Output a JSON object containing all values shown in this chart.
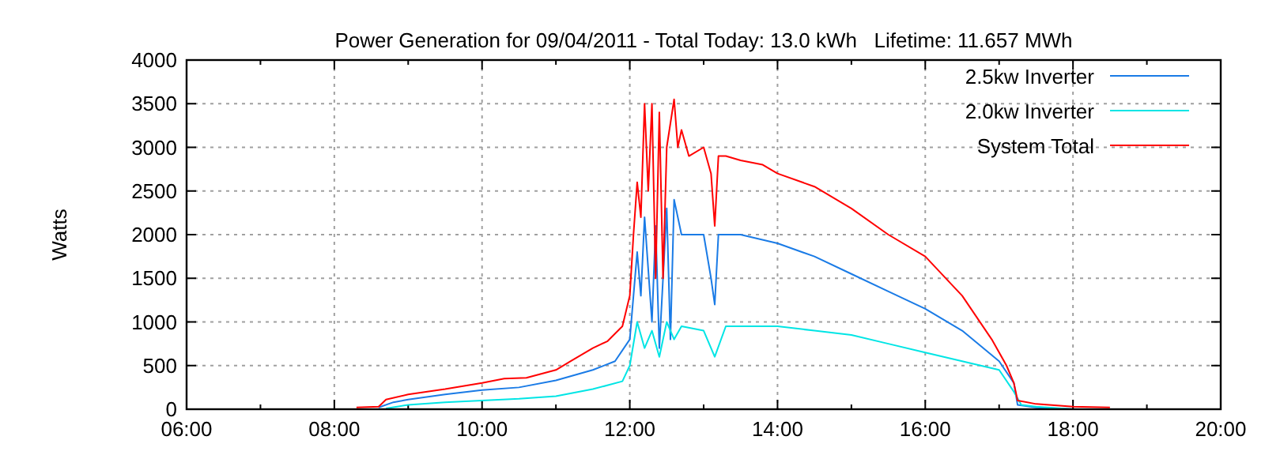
{
  "chart_data": {
    "type": "line",
    "title": "Power Generation for 09/04/2011 - Total Today: 13.0 kWh   Lifetime: 11.657 MWh",
    "ylabel": "Watts",
    "xlim": [
      6,
      20
    ],
    "xticks": [
      {
        "value": 6,
        "label": "06:00"
      },
      {
        "value": 7,
        "label": null
      },
      {
        "value": 8,
        "label": "08:00"
      },
      {
        "value": 9,
        "label": null
      },
      {
        "value": 10,
        "label": "10:00"
      },
      {
        "value": 11,
        "label": null
      },
      {
        "value": 12,
        "label": "12:00"
      },
      {
        "value": 13,
        "label": null
      },
      {
        "value": 14,
        "label": "14:00"
      },
      {
        "value": 15,
        "label": null
      },
      {
        "value": 16,
        "label": "16:00"
      },
      {
        "value": 17,
        "label": null
      },
      {
        "value": 18,
        "label": "18:00"
      },
      {
        "value": 19,
        "label": null
      },
      {
        "value": 20,
        "label": "20:00"
      }
    ],
    "ylim": [
      0,
      4000
    ],
    "yticks": [
      0,
      500,
      1000,
      1500,
      2000,
      2500,
      3000,
      3500,
      4000
    ],
    "grid": true,
    "legend": "top right",
    "line_style": "solid",
    "series": [
      {
        "name": "2.5kw Inverter",
        "color": "#1a7be6",
        "x": [
          8.6,
          8.8,
          9.0,
          9.5,
          10.0,
          10.5,
          11.0,
          11.5,
          11.8,
          12.0,
          12.1,
          12.15,
          12.2,
          12.3,
          12.35,
          12.4,
          12.5,
          12.55,
          12.6,
          12.7,
          13.0,
          13.1,
          13.15,
          13.2,
          13.5,
          14.0,
          14.5,
          15.0,
          15.5,
          16.0,
          16.5,
          17.0,
          17.2,
          17.25,
          17.5,
          18.0
        ],
        "values": [
          20,
          80,
          110,
          170,
          220,
          250,
          330,
          450,
          550,
          800,
          1800,
          1300,
          2200,
          1000,
          2100,
          700,
          2300,
          800,
          2400,
          2000,
          2000,
          1500,
          1200,
          2000,
          2000,
          1900,
          1750,
          1550,
          1350,
          1150,
          900,
          550,
          300,
          50,
          20,
          0
        ]
      },
      {
        "name": "2.0kw Inverter",
        "color": "#00e5e5",
        "x": [
          8.7,
          9.0,
          9.5,
          10.0,
          10.5,
          11.0,
          11.5,
          11.9,
          12.0,
          12.1,
          12.2,
          12.3,
          12.4,
          12.5,
          12.6,
          12.7,
          13.0,
          13.15,
          13.3,
          14.0,
          14.5,
          15.0,
          15.5,
          16.0,
          16.5,
          17.0,
          17.2,
          17.3,
          17.5,
          18.0
        ],
        "values": [
          10,
          50,
          80,
          100,
          120,
          150,
          230,
          320,
          500,
          1000,
          700,
          900,
          600,
          1000,
          800,
          950,
          900,
          600,
          950,
          950,
          900,
          850,
          750,
          650,
          550,
          450,
          200,
          50,
          30,
          0
        ]
      },
      {
        "name": "System Total",
        "color": "#ff0000",
        "x": [
          8.3,
          8.6,
          8.7,
          9.0,
          9.5,
          10.0,
          10.3,
          10.6,
          11.0,
          11.2,
          11.5,
          11.7,
          11.9,
          12.0,
          12.05,
          12.1,
          12.15,
          12.2,
          12.25,
          12.3,
          12.35,
          12.4,
          12.45,
          12.5,
          12.6,
          12.65,
          12.7,
          12.8,
          13.0,
          13.1,
          13.15,
          13.2,
          13.3,
          13.5,
          13.8,
          14.0,
          14.5,
          15.0,
          15.5,
          16.0,
          16.5,
          16.9,
          17.1,
          17.2,
          17.25,
          17.5,
          18.0,
          18.5
        ],
        "values": [
          20,
          30,
          110,
          170,
          230,
          300,
          350,
          360,
          450,
          550,
          700,
          780,
          950,
          1300,
          2000,
          2600,
          2200,
          3500,
          2500,
          3500,
          1500,
          3400,
          1500,
          3000,
          3550,
          3000,
          3200,
          2900,
          3000,
          2700,
          2100,
          2900,
          2900,
          2850,
          2800,
          2700,
          2550,
          2300,
          2000,
          1750,
          1300,
          800,
          500,
          300,
          100,
          60,
          30,
          20
        ]
      }
    ]
  }
}
